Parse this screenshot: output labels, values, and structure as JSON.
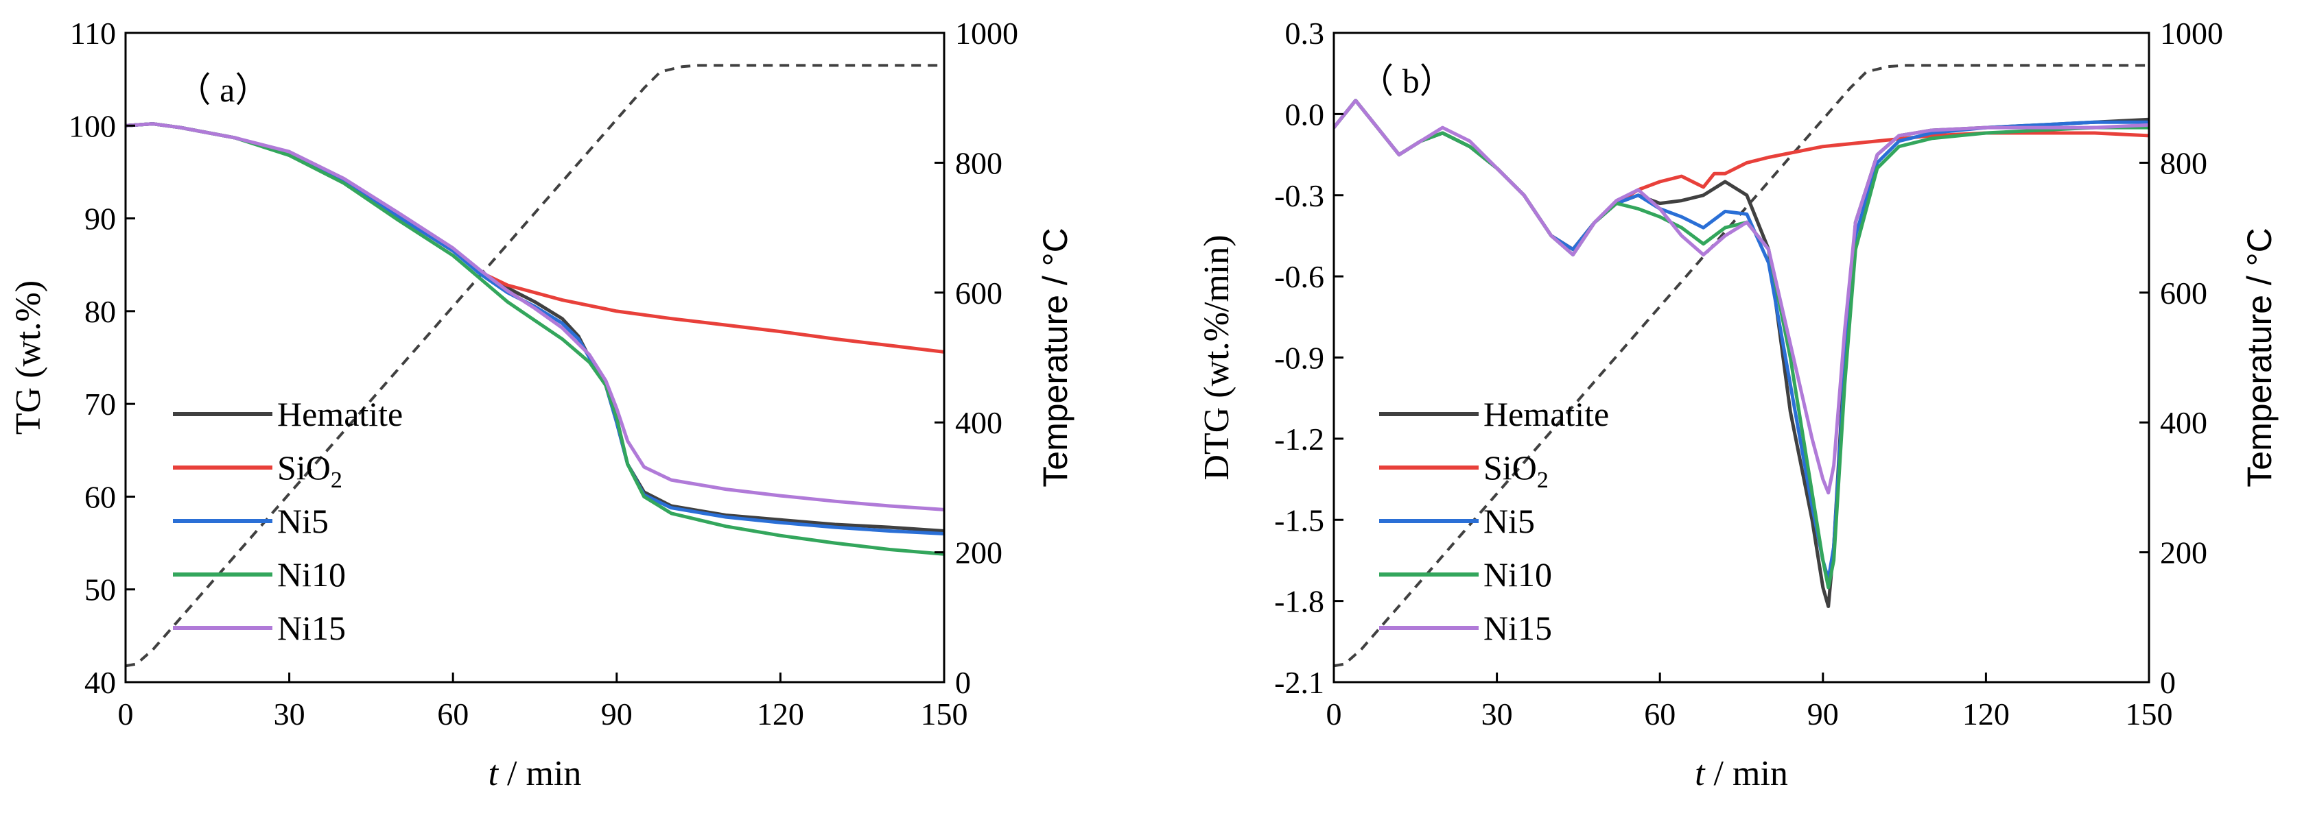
{
  "chart_data": [
    {
      "type": "line",
      "panel_label": "（ a）",
      "ylabel": "TG (wt.%)",
      "y2label": "Temperature / °C",
      "xlabel_italic": "t",
      "xlabel_rest": "  / min",
      "xlim": [
        0,
        150
      ],
      "ylim": [
        40,
        110
      ],
      "y2lim": [
        0,
        1000
      ],
      "xticks": [
        "0",
        "30",
        "60",
        "90",
        "120",
        "150"
      ],
      "yticks": [
        "40",
        "50",
        "60",
        "70",
        "80",
        "90",
        "100",
        "110"
      ],
      "y2ticks": [
        "0",
        "200",
        "400",
        "600",
        "800",
        "1000"
      ],
      "legend": [
        "Hematite",
        "SiO",
        "Ni5",
        "Ni10",
        "Ni15"
      ],
      "legend_sub": "2",
      "legend_position": "lower-left",
      "colors": [
        "#404040",
        "#e8403a",
        "#2a6fd6",
        "#33a65c",
        "#b07ad8"
      ],
      "series": [
        {
          "name": "Hematite",
          "x": [
            0,
            5,
            10,
            20,
            30,
            40,
            50,
            60,
            65,
            70,
            75,
            80,
            83,
            85,
            88,
            90,
            92,
            95,
            100,
            110,
            120,
            130,
            140,
            150
          ],
          "values": [
            100,
            100.2,
            99.8,
            98.7,
            97,
            94,
            90.2,
            86.5,
            84.2,
            82.5,
            81,
            79.2,
            77.3,
            75,
            72,
            68,
            63.5,
            60.5,
            59,
            58,
            57.5,
            57,
            56.7,
            56.3
          ]
        },
        {
          "name": "SiO2",
          "x": [
            0,
            5,
            10,
            20,
            30,
            40,
            50,
            60,
            65,
            70,
            80,
            90,
            100,
            110,
            120,
            130,
            140,
            150
          ],
          "values": [
            100,
            100.2,
            99.8,
            98.7,
            97,
            94,
            90.2,
            86.5,
            84.2,
            82.8,
            81.2,
            80,
            79.2,
            78.5,
            77.8,
            77,
            76.3,
            75.6
          ]
        },
        {
          "name": "Ni5",
          "x": [
            0,
            5,
            10,
            20,
            30,
            40,
            50,
            60,
            65,
            70,
            75,
            80,
            83,
            85,
            88,
            90,
            92,
            95,
            100,
            110,
            120,
            130,
            140,
            150
          ],
          "values": [
            100,
            100.2,
            99.8,
            98.7,
            97,
            94,
            90.2,
            86.5,
            84,
            82,
            80.5,
            78.7,
            77,
            75,
            72,
            68,
            63.5,
            60.2,
            58.8,
            57.8,
            57.2,
            56.7,
            56.3,
            56
          ]
        },
        {
          "name": "Ni10",
          "x": [
            0,
            5,
            10,
            20,
            30,
            40,
            50,
            60,
            65,
            70,
            75,
            80,
            85,
            88,
            90,
            92,
            95,
            100,
            110,
            120,
            130,
            140,
            150
          ],
          "values": [
            100,
            100.2,
            99.8,
            98.7,
            96.8,
            93.8,
            89.8,
            86,
            83.5,
            81,
            79,
            77,
            74.5,
            72,
            68.5,
            63.5,
            60,
            58.2,
            56.8,
            55.8,
            55,
            54.3,
            53.8
          ]
        },
        {
          "name": "Ni15",
          "x": [
            0,
            5,
            10,
            20,
            30,
            40,
            50,
            60,
            65,
            70,
            75,
            80,
            85,
            88,
            90,
            92,
            95,
            100,
            110,
            120,
            130,
            140,
            150
          ],
          "values": [
            100,
            100.2,
            99.8,
            98.7,
            97.2,
            94.3,
            90.6,
            86.8,
            84.4,
            82.2,
            80.3,
            78.2,
            75.3,
            72.5,
            69.5,
            66,
            63.2,
            61.8,
            60.8,
            60.1,
            59.5,
            59,
            58.6
          ]
        }
      ],
      "temperature": {
        "x": [
          0,
          2,
          5,
          95,
          98,
          102,
          105,
          150
        ],
        "values": [
          25,
          28,
          50,
          915,
          940,
          948,
          950,
          950
        ]
      }
    },
    {
      "type": "line",
      "panel_label": "（ b）",
      "ylabel": "DTG (wt.%/min)",
      "y2label": "Temperature / °C",
      "xlabel_italic": "t",
      "xlabel_rest": "  / min",
      "xlim": [
        0,
        150
      ],
      "ylim": [
        -2.1,
        0.3
      ],
      "y2lim": [
        0,
        1000
      ],
      "xticks": [
        "0",
        "30",
        "60",
        "90",
        "120",
        "150"
      ],
      "yticks": [
        "-2.1",
        "-1.8",
        "-1.5",
        "-1.2",
        "-0.9",
        "-0.6",
        "-0.3",
        "0.0",
        "0.3"
      ],
      "y2ticks": [
        "0",
        "200",
        "400",
        "600",
        "800",
        "1000"
      ],
      "legend": [
        "Hematite",
        "SiO",
        "Ni5",
        "Ni10",
        "Ni15"
      ],
      "legend_sub": "2",
      "legend_position": "lower-left",
      "colors": [
        "#404040",
        "#e8403a",
        "#2a6fd6",
        "#33a65c",
        "#b07ad8"
      ],
      "series": [
        {
          "name": "Hematite",
          "x": [
            0,
            4,
            8,
            12,
            16,
            20,
            25,
            30,
            35,
            40,
            44,
            48,
            52,
            56,
            60,
            64,
            68,
            72,
            76,
            80,
            84,
            88,
            90,
            91,
            92,
            94,
            96,
            100,
            104,
            110,
            120,
            130,
            140,
            150
          ],
          "values": [
            -0.05,
            0.05,
            -0.05,
            -0.15,
            -0.1,
            -0.07,
            -0.12,
            -0.2,
            -0.3,
            -0.45,
            -0.5,
            -0.4,
            -0.33,
            -0.3,
            -0.33,
            -0.32,
            -0.3,
            -0.25,
            -0.3,
            -0.5,
            -1.1,
            -1.5,
            -1.75,
            -1.82,
            -1.6,
            -0.9,
            -0.4,
            -0.15,
            -0.08,
            -0.06,
            -0.05,
            -0.04,
            -0.03,
            -0.02
          ]
        },
        {
          "name": "SiO2",
          "x": [
            0,
            4,
            8,
            12,
            16,
            20,
            25,
            30,
            35,
            40,
            44,
            48,
            52,
            56,
            60,
            64,
            68,
            70,
            72,
            76,
            80,
            90,
            100,
            110,
            120,
            130,
            140,
            150
          ],
          "values": [
            -0.05,
            0.05,
            -0.05,
            -0.15,
            -0.1,
            -0.07,
            -0.12,
            -0.2,
            -0.3,
            -0.45,
            -0.5,
            -0.4,
            -0.33,
            -0.28,
            -0.25,
            -0.23,
            -0.27,
            -0.22,
            -0.22,
            -0.18,
            -0.16,
            -0.12,
            -0.1,
            -0.08,
            -0.07,
            -0.07,
            -0.07,
            -0.08
          ]
        },
        {
          "name": "Ni5",
          "x": [
            0,
            4,
            8,
            12,
            16,
            20,
            25,
            30,
            35,
            40,
            44,
            48,
            52,
            56,
            60,
            64,
            68,
            72,
            76,
            80,
            84,
            88,
            90,
            91,
            92,
            94,
            96,
            100,
            104,
            110,
            120,
            130,
            140,
            150
          ],
          "values": [
            -0.05,
            0.05,
            -0.05,
            -0.15,
            -0.1,
            -0.07,
            -0.12,
            -0.2,
            -0.3,
            -0.45,
            -0.5,
            -0.4,
            -0.33,
            -0.3,
            -0.35,
            -0.38,
            -0.42,
            -0.36,
            -0.37,
            -0.55,
            -1.0,
            -1.45,
            -1.65,
            -1.72,
            -1.6,
            -0.95,
            -0.45,
            -0.18,
            -0.1,
            -0.07,
            -0.05,
            -0.04,
            -0.03,
            -0.03
          ]
        },
        {
          "name": "Ni10",
          "x": [
            0,
            4,
            8,
            12,
            16,
            20,
            25,
            30,
            35,
            40,
            44,
            48,
            52,
            56,
            60,
            64,
            68,
            72,
            76,
            80,
            84,
            88,
            90,
            91,
            92,
            94,
            96,
            100,
            104,
            110,
            120,
            130,
            140,
            150
          ],
          "values": [
            -0.05,
            0.05,
            -0.05,
            -0.15,
            -0.1,
            -0.07,
            -0.12,
            -0.2,
            -0.3,
            -0.45,
            -0.52,
            -0.4,
            -0.33,
            -0.35,
            -0.38,
            -0.42,
            -0.48,
            -0.42,
            -0.4,
            -0.5,
            -0.9,
            -1.4,
            -1.65,
            -1.75,
            -1.65,
            -1.0,
            -0.5,
            -0.2,
            -0.12,
            -0.09,
            -0.07,
            -0.06,
            -0.05,
            -0.05
          ]
        },
        {
          "name": "Ni15",
          "x": [
            0,
            4,
            8,
            12,
            16,
            20,
            25,
            30,
            35,
            40,
            44,
            48,
            52,
            56,
            60,
            64,
            68,
            72,
            76,
            80,
            84,
            88,
            90,
            91,
            92,
            94,
            96,
            100,
            104,
            110,
            120,
            130,
            140,
            150
          ],
          "values": [
            -0.05,
            0.05,
            -0.05,
            -0.15,
            -0.1,
            -0.05,
            -0.1,
            -0.2,
            -0.3,
            -0.45,
            -0.52,
            -0.4,
            -0.32,
            -0.28,
            -0.35,
            -0.45,
            -0.52,
            -0.45,
            -0.4,
            -0.5,
            -0.85,
            -1.2,
            -1.35,
            -1.4,
            -1.3,
            -0.8,
            -0.4,
            -0.15,
            -0.08,
            -0.06,
            -0.05,
            -0.05,
            -0.05,
            -0.04
          ]
        }
      ],
      "temperature": {
        "x": [
          0,
          2,
          5,
          95,
          98,
          102,
          105,
          150
        ],
        "values": [
          25,
          28,
          50,
          915,
          940,
          948,
          950,
          950
        ]
      }
    }
  ]
}
